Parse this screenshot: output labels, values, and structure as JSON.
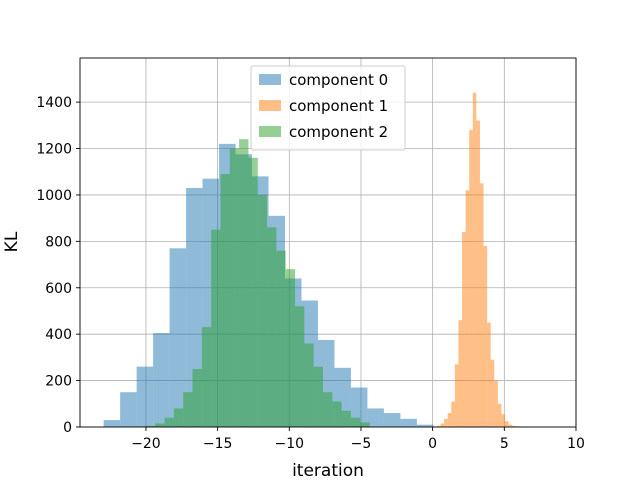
{
  "chart_data": {
    "type": "histogram",
    "title": "",
    "xlabel": "iteration",
    "ylabel": "KL",
    "xlim": [
      -24.6,
      10
    ],
    "ylim": [
      0,
      1590
    ],
    "xticks": [
      -20,
      -15,
      -10,
      -5,
      0,
      5,
      10
    ],
    "xtick_labels": [
      "−20",
      "−15",
      "−10",
      "−5",
      "0",
      "5",
      "10"
    ],
    "yticks": [
      0,
      200,
      400,
      600,
      800,
      1000,
      1200,
      1400
    ],
    "ytick_labels": [
      "0",
      "200",
      "400",
      "600",
      "800",
      "1000",
      "1200",
      "1400"
    ],
    "grid": true,
    "legend_position": "top-center",
    "series": [
      {
        "name": "component 0",
        "color": "#1f77b4",
        "alpha": 0.5,
        "bins": [
          [
            -22.95,
            -21.8,
            30
          ],
          [
            -21.8,
            -20.65,
            150
          ],
          [
            -20.65,
            -19.5,
            260
          ],
          [
            -19.5,
            -18.35,
            405
          ],
          [
            -18.35,
            -17.2,
            770
          ],
          [
            -17.2,
            -16.05,
            1030
          ],
          [
            -16.05,
            -14.9,
            1070
          ],
          [
            -14.9,
            -13.75,
            1220
          ],
          [
            -13.75,
            -12.6,
            1175
          ],
          [
            -12.6,
            -11.45,
            1080
          ],
          [
            -11.45,
            -10.3,
            910
          ],
          [
            -10.3,
            -9.15,
            640
          ],
          [
            -9.15,
            -8.0,
            545
          ],
          [
            -8.0,
            -6.85,
            375
          ],
          [
            -6.85,
            -5.7,
            255
          ],
          [
            -5.7,
            -4.55,
            170
          ],
          [
            -4.55,
            -3.4,
            80
          ],
          [
            -3.4,
            -2.25,
            60
          ],
          [
            -2.25,
            -1.1,
            35
          ],
          [
            -1.1,
            0.05,
            10
          ]
        ]
      },
      {
        "name": "component 1",
        "color": "#ff7f0e",
        "alpha": 0.5,
        "bins": [
          [
            0.3,
            0.55,
            5
          ],
          [
            0.55,
            0.8,
            15
          ],
          [
            0.8,
            1.05,
            35
          ],
          [
            1.05,
            1.3,
            60
          ],
          [
            1.3,
            1.55,
            110
          ],
          [
            1.55,
            1.8,
            270
          ],
          [
            1.8,
            2.05,
            460
          ],
          [
            2.05,
            2.3,
            840
          ],
          [
            2.3,
            2.55,
            1020
          ],
          [
            2.55,
            2.8,
            1280
          ],
          [
            2.8,
            3.05,
            1440
          ],
          [
            3.05,
            3.3,
            1320
          ],
          [
            3.3,
            3.55,
            1050
          ],
          [
            3.55,
            3.8,
            780
          ],
          [
            3.8,
            4.05,
            450
          ],
          [
            4.05,
            4.3,
            290
          ],
          [
            4.3,
            4.55,
            200
          ],
          [
            4.55,
            4.8,
            100
          ],
          [
            4.8,
            5.05,
            55
          ],
          [
            5.05,
            5.3,
            25
          ],
          [
            5.3,
            5.55,
            10
          ],
          [
            5.55,
            5.8,
            5
          ],
          [
            5.8,
            6.05,
            3
          ],
          [
            6.05,
            6.3,
            2
          ]
        ]
      },
      {
        "name": "component 2",
        "color": "#2ca02c",
        "alpha": 0.5,
        "bins": [
          [
            -20.0,
            -19.35,
            5
          ],
          [
            -19.35,
            -18.7,
            15
          ],
          [
            -18.7,
            -18.05,
            40
          ],
          [
            -18.05,
            -17.4,
            80
          ],
          [
            -17.4,
            -16.75,
            150
          ],
          [
            -16.75,
            -16.1,
            250
          ],
          [
            -16.1,
            -15.45,
            430
          ],
          [
            -15.45,
            -14.8,
            850
          ],
          [
            -14.8,
            -14.15,
            1090
          ],
          [
            -14.15,
            -13.5,
            1200
          ],
          [
            -13.5,
            -12.85,
            1240
          ],
          [
            -12.85,
            -12.2,
            1160
          ],
          [
            -12.2,
            -11.55,
            1000
          ],
          [
            -11.55,
            -10.9,
            860
          ],
          [
            -10.9,
            -10.25,
            760
          ],
          [
            -10.25,
            -9.6,
            680
          ],
          [
            -9.6,
            -8.95,
            520
          ],
          [
            -8.95,
            -8.3,
            360
          ],
          [
            -8.3,
            -7.65,
            260
          ],
          [
            -7.65,
            -7.0,
            150
          ],
          [
            -7.0,
            -6.35,
            110
          ],
          [
            -6.35,
            -5.7,
            70
          ],
          [
            -5.7,
            -5.05,
            40
          ],
          [
            -5.05,
            -4.4,
            20
          ]
        ]
      }
    ]
  }
}
